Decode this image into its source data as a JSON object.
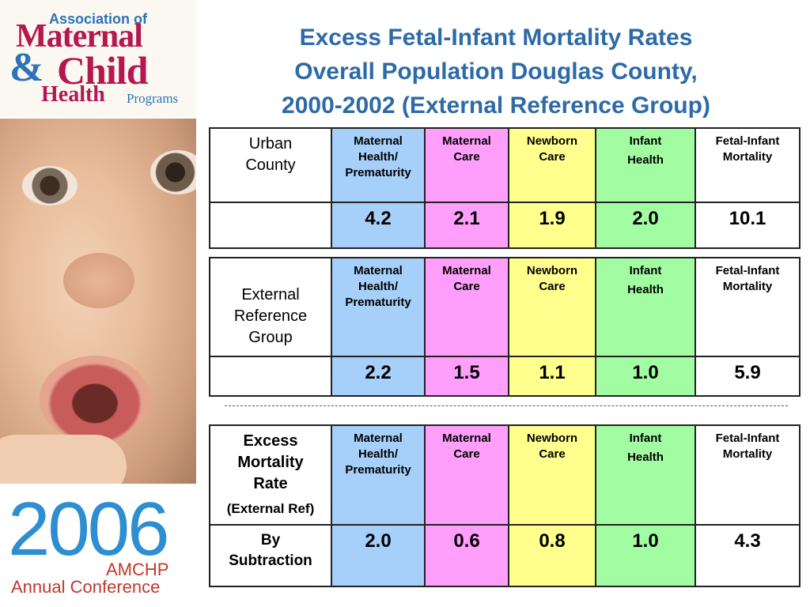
{
  "logo": {
    "line1": "Association of",
    "line2": "Maternal",
    "amp": "&",
    "line3": "Child",
    "line4": "Health",
    "line5": "Programs"
  },
  "conference": {
    "year": "2006",
    "org": "AMCHP",
    "event": "Annual Conference"
  },
  "title": {
    "line1": "Excess Fetal-Infant Mortality Rates",
    "line2": "Overall Population Douglas County,",
    "line3": "2000-2002 (External Reference Group)"
  },
  "headers": {
    "maternal_health_1": "Maternal",
    "maternal_health_2": "Health/",
    "maternal_health_3": "Prematurity",
    "maternal_care_1": "Maternal",
    "maternal_care_2": "Care",
    "newborn_care_1": "Newborn",
    "newborn_care_2": "Care",
    "infant_health_1": "Infant",
    "infant_health_2": "Health",
    "fetal_infant_1": "Fetal-Infant",
    "fetal_infant_2": "Mortality"
  },
  "table1": {
    "label_line1": "Urban",
    "label_line2": "County",
    "values": [
      "4.2",
      "2.1",
      "1.9",
      "2.0",
      "10.1"
    ]
  },
  "table2": {
    "label_line1": "External",
    "label_line2": "Reference",
    "label_line3": "Group",
    "values": [
      "2.2",
      "1.5",
      "1.1",
      "1.0",
      "5.9"
    ]
  },
  "table3": {
    "label_line1": "Excess",
    "label_line2": "Mortality",
    "label_line3": "Rate",
    "label_sub": "(External Ref)",
    "row_label_line1": "By",
    "row_label_line2": "Subtraction",
    "values": [
      "2.0",
      "0.6",
      "0.8",
      "1.0",
      "4.3"
    ]
  },
  "colors": {
    "maternal_health": "#a6cffa",
    "maternal_care": "#ff9efb",
    "newborn_care": "#ffff8e",
    "infant_health": "#a2fca2",
    "title": "#2d6aa8"
  }
}
